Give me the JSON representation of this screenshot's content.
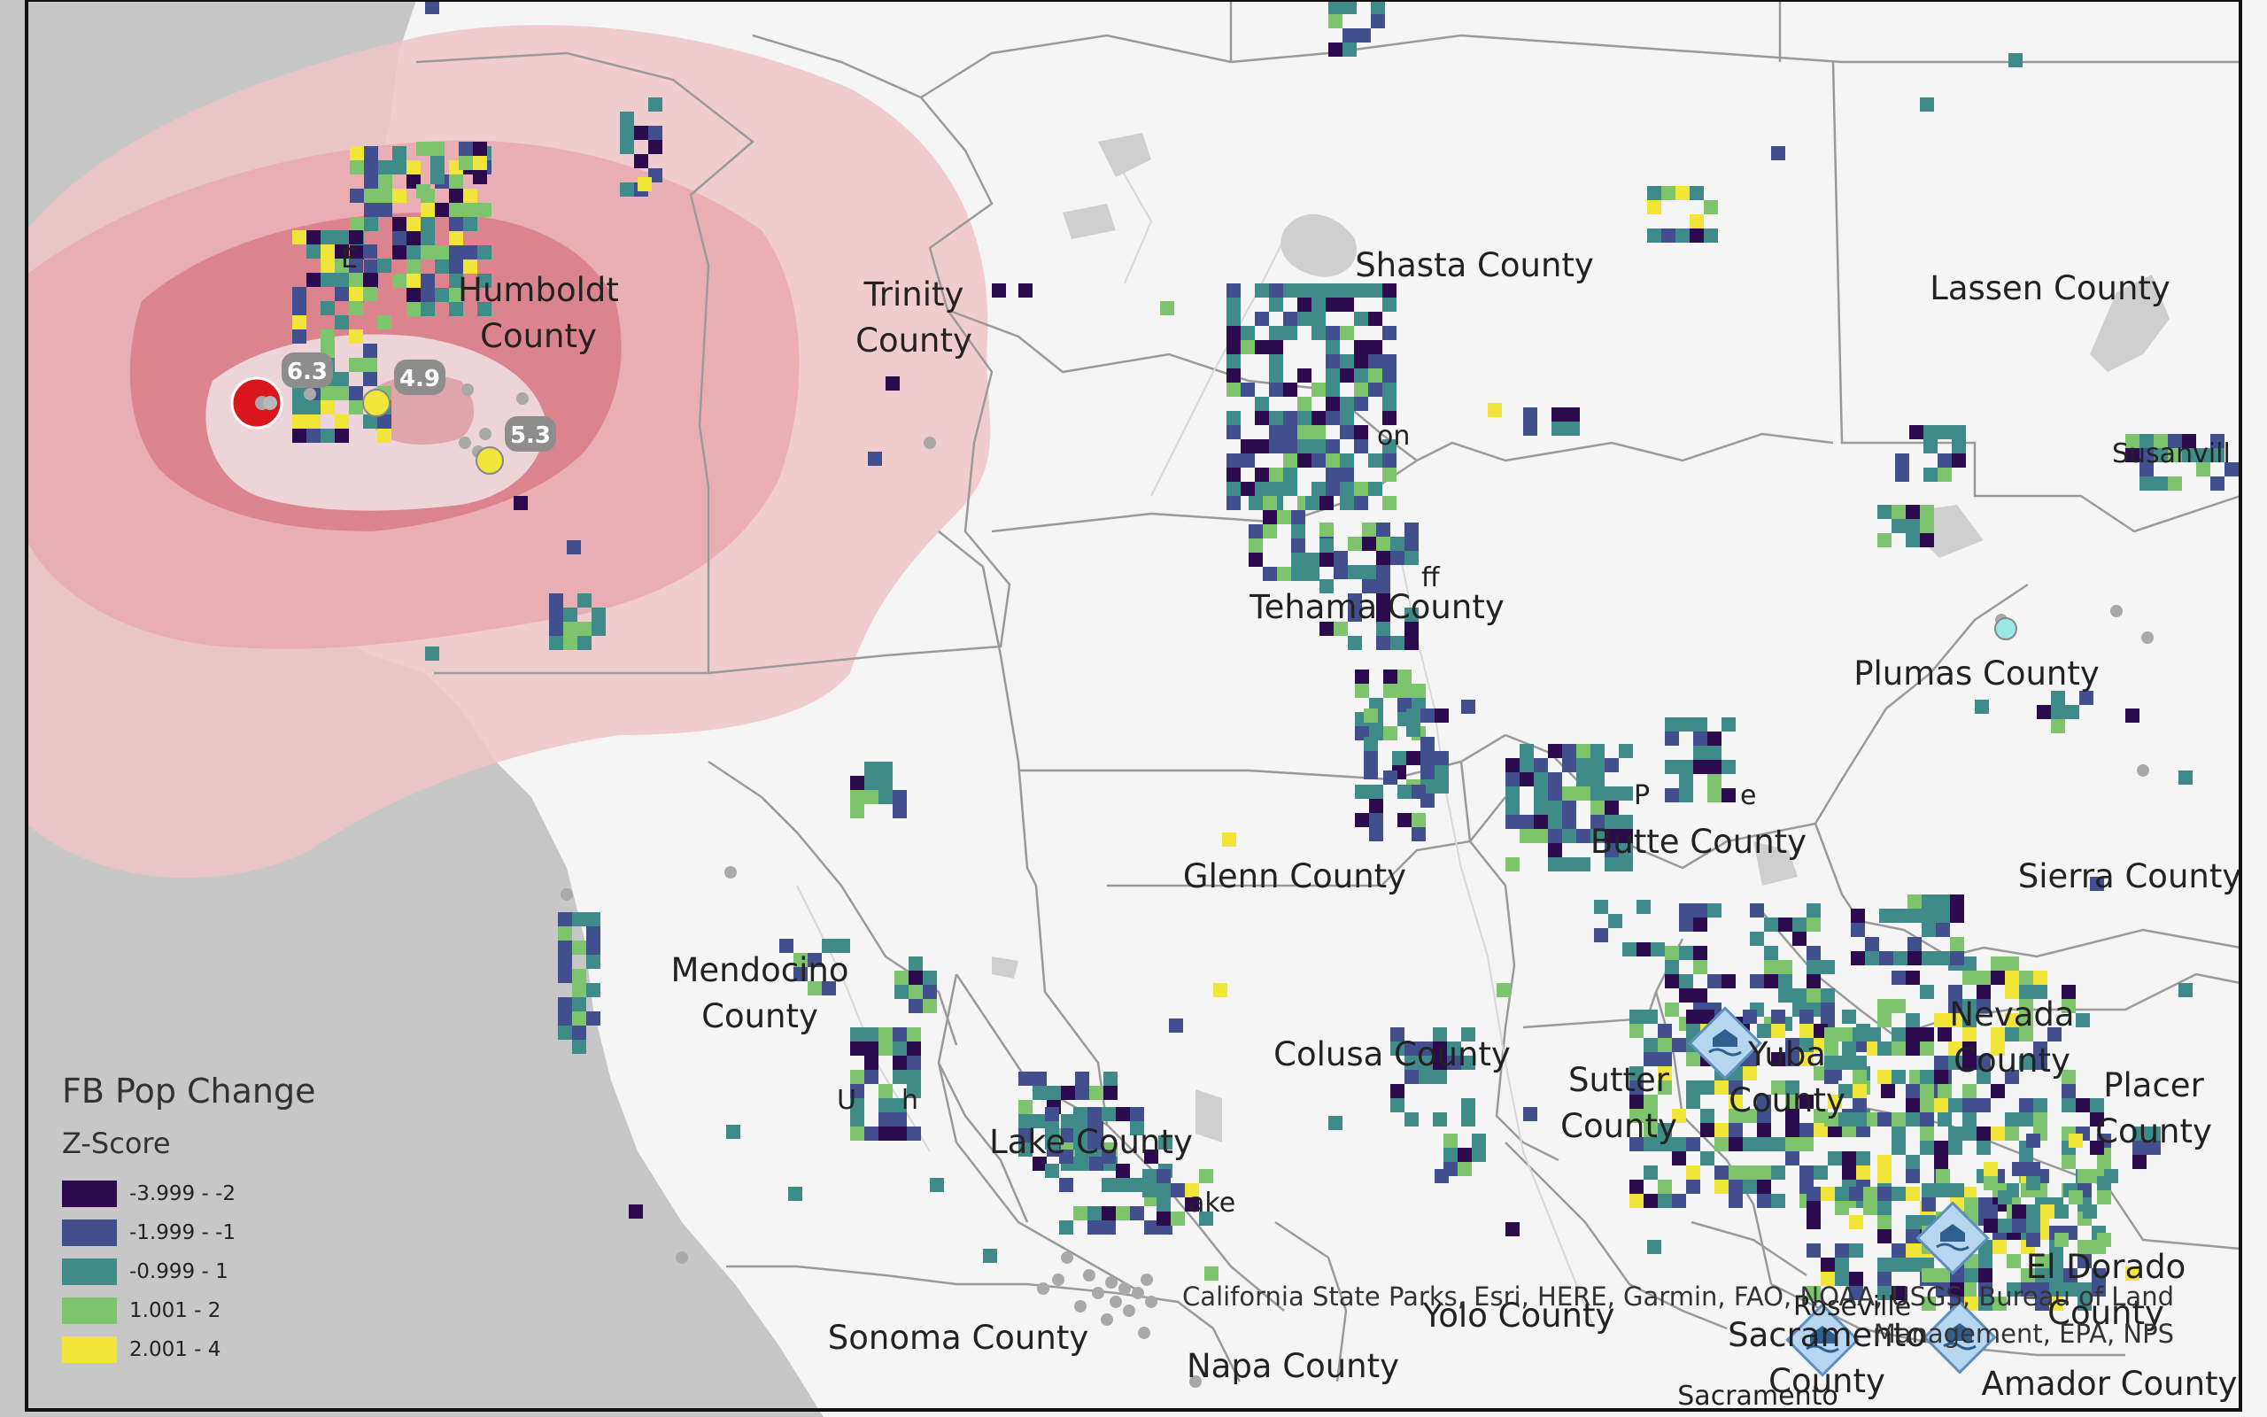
{
  "colors": {
    "z_neg4": "#2b0a4d",
    "z_neg2": "#414f8f",
    "z_0": "#3f8b8a",
    "z_pos1": "#7ec46d",
    "z_pos2": "#f2e53a",
    "shake_outer": "#f0c4c8",
    "shake_mid": "#e39aa2",
    "shake_inner": "#cf6f79",
    "ocean": "#c7c7c7",
    "land": "#f5f5f6",
    "epicenter": "#d8161c"
  },
  "counties": {
    "humboldt": "Humboldt\nCounty",
    "trinity": "Trinity\nCounty",
    "shasta": "Shasta County",
    "lassen": "Lassen County",
    "tehama": "Tehama County",
    "plumas": "Plumas County",
    "butte": "Butte County",
    "glenn": "Glenn County",
    "sierra": "Sierra County",
    "mendocino": "Mendocino\nCounty",
    "nevada": "Nevada\nCounty",
    "colusa": "Colusa County",
    "sutter": "Sutter\nCounty",
    "yuba": "Yuba\nCounty",
    "placer": "Placer\nCounty",
    "lake": "Lake County",
    "el_dorado": "El Dorado\nCounty",
    "yolo": "Yolo County",
    "sonoma": "Sonoma County",
    "napa": "Napa County",
    "sacramento": "Sacramento\nCounty",
    "amador": "Amador County"
  },
  "places": {
    "eureka_partial": "E",
    "redding_partial": "on",
    "red_bluff_partial": "ff",
    "paradise_partial": "P",
    "paradise_partial_2": "e",
    "susanville_partial": "Susanvill",
    "ukiah_partial_1": "U",
    "ukiah_partial_2": "h",
    "lakeport_partial": "ake",
    "roseville": "Roseville",
    "sacramento_city": "Sacramento"
  },
  "magnitudes": [
    "6.3",
    "4.9",
    "5.3"
  ],
  "attribution": {
    "line1": "California State Parks, Esri, HERE, Garmin, FAO, NOAA, USGS, Bureau of Land",
    "line2": "Management, EPA, NPS"
  },
  "legend": {
    "title": "FB Pop Change",
    "subtitle": "Z-Score",
    "items": [
      {
        "label": "-3.999 - -2",
        "color": "#2b0a4d"
      },
      {
        "label": "-1.999 - -1",
        "color": "#414f8f"
      },
      {
        "label": "-0.999 - 1",
        "color": "#3f8b8a"
      },
      {
        "label": "1.001 - 2",
        "color": "#7ec46d"
      },
      {
        "label": "2.001 - 4",
        "color": "#f2e53a"
      }
    ]
  }
}
